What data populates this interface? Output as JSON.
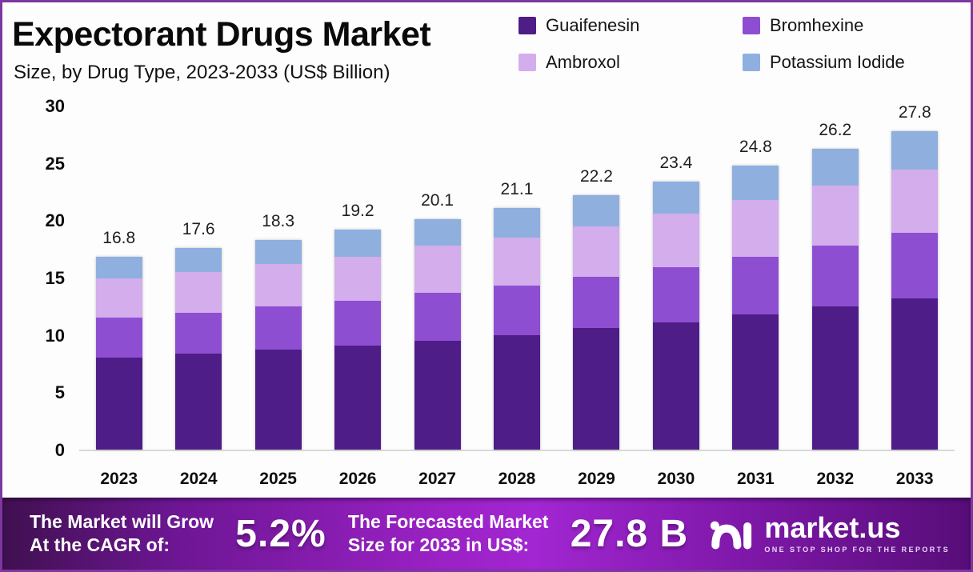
{
  "header": {
    "title": "Expectorant Drugs Market",
    "subtitle": "Size, by Drug Type, 2023-2033 (US$ Billion)"
  },
  "chart_data": {
    "type": "bar",
    "stacked": true,
    "title": "Expectorant Drugs Market Size, by Drug Type, 2023-2033 (US$ Billion)",
    "categories": [
      "2023",
      "2024",
      "2025",
      "2026",
      "2027",
      "2028",
      "2029",
      "2030",
      "2031",
      "2032",
      "2033"
    ],
    "series": [
      {
        "name": "Guaifenesin",
        "color": "#4e1d87",
        "values": [
          8.0,
          8.4,
          8.7,
          9.1,
          9.5,
          10.0,
          10.6,
          11.1,
          11.8,
          12.5,
          13.2
        ]
      },
      {
        "name": "Bromhexine",
        "color": "#8e4ed1",
        "values": [
          3.5,
          3.5,
          3.8,
          3.9,
          4.2,
          4.3,
          4.5,
          4.8,
          5.0,
          5.3,
          5.7
        ]
      },
      {
        "name": "Ambroxol",
        "color": "#d3adec",
        "values": [
          3.4,
          3.6,
          3.7,
          3.8,
          4.1,
          4.2,
          4.4,
          4.7,
          5.0,
          5.2,
          5.5
        ]
      },
      {
        "name": "Potassium Iodide",
        "color": "#8fafdf",
        "values": [
          1.9,
          2.1,
          2.1,
          2.4,
          2.3,
          2.6,
          2.7,
          2.8,
          3.0,
          3.2,
          3.4
        ]
      }
    ],
    "totals": [
      "16.8",
      "17.6",
      "18.3",
      "19.2",
      "20.1",
      "21.1",
      "22.2",
      "23.4",
      "24.8",
      "26.2",
      "27.8"
    ],
    "xlabel": "",
    "ylabel": "",
    "ylim": [
      0,
      30
    ],
    "yticks": [
      0,
      5,
      10,
      15,
      20,
      25,
      30
    ],
    "grid": false,
    "legend_position": "top-right"
  },
  "footer": {
    "cagr_label_line1": "The Market will Grow",
    "cagr_label_line2": "At the CAGR of:",
    "cagr_value": "5.2%",
    "forecast_label_line1": "The Forecasted Market",
    "forecast_label_line2": "Size for 2033 in US$:",
    "forecast_value": "27.8 B",
    "brand": "market.us",
    "brand_tagline": "ONE STOP SHOP FOR THE REPORTS"
  }
}
